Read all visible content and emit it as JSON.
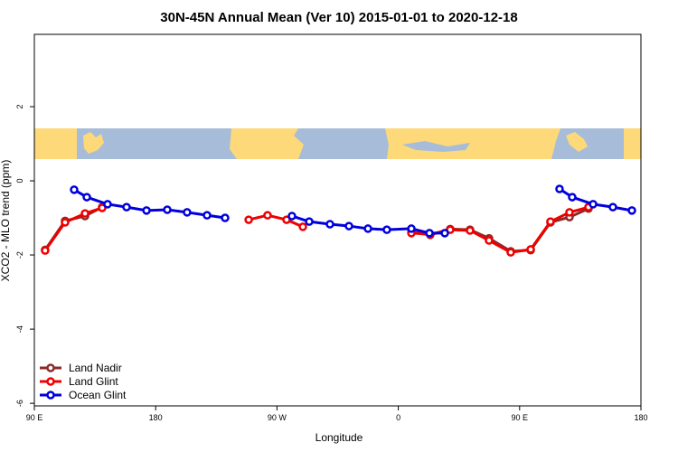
{
  "chart_data": {
    "type": "line",
    "title": "30N-45N Annual Mean (Ver 10)   2015-01-01 to 2020-12-18",
    "xlabel": "Longitude",
    "ylabel": "XCO2 - MLO trend (ppm)",
    "xlim": [
      90,
      540
    ],
    "ylim": [
      -6.07,
      3.95
    ],
    "xticks": [
      {
        "value": 90,
        "label": "90 E"
      },
      180,
      {
        "value": 270,
        "label": "90 W"
      },
      {
        "value": 360,
        "label": "0"
      },
      {
        "value": 450,
        "label": "90 E"
      },
      {
        "value": 540,
        "label": "180"
      }
    ],
    "yticks": [
      -6,
      -4,
      -2,
      0,
      2
    ],
    "legend": "lower left",
    "series": [
      {
        "name": "Land Nadir",
        "color": "#8b2a2a",
        "x": [
          98,
          112.8,
          127.6,
          140.3,
          238.9,
          369.7,
          383.7,
          398.5,
          413.2,
          427.3,
          443.4,
          458.2,
          472.9,
          487,
          501.1
        ],
        "values": [
          -1.86,
          -1.08,
          -0.95,
          -0.71,
          null,
          -1.38,
          -1.46,
          -1.3,
          -1.32,
          -1.55,
          -1.9,
          -1.87,
          -1.12,
          -0.98,
          -0.75
        ]
      },
      {
        "name": "Land Glint",
        "color": "#ee0000",
        "x": [
          98,
          112.8,
          127.6,
          140.3,
          238.9,
          249,
          263,
          277.1,
          289.2,
          356.3,
          369.7,
          383.7,
          398.5,
          413.2,
          427.3,
          443.4,
          458.2,
          472.9,
          487,
          501.1
        ],
        "values": [
          -1.88,
          -1.12,
          -0.88,
          -0.73,
          null,
          -1.05,
          -0.93,
          -1.05,
          -1.24,
          null,
          -1.41,
          -1.44,
          -1.32,
          -1.34,
          -1.61,
          -1.93,
          -1.85,
          -1.1,
          -0.85,
          -0.71
        ]
      },
      {
        "name": "Ocean Glint",
        "color": "#0000dd",
        "x": [
          119.5,
          128.9,
          144.3,
          158.4,
          173.2,
          188.6,
          203.3,
          218.1,
          231.5,
          243.6,
          281.1,
          293.9,
          309.3,
          323.4,
          337.5,
          351.5,
          369.7,
          383.1,
          394.5,
          411.9,
          479.6,
          489,
          504.5,
          519.2,
          533.3
        ],
        "values": [
          -0.24,
          -0.44,
          -0.63,
          -0.71,
          -0.8,
          -0.78,
          -0.85,
          -0.93,
          -1.0,
          null,
          -0.95,
          -1.1,
          -1.17,
          -1.22,
          -1.29,
          -1.32,
          -1.29,
          -1.41,
          -1.41,
          null,
          -0.22,
          -0.44,
          -0.63,
          -0.71,
          -0.8
        ]
      }
    ]
  }
}
